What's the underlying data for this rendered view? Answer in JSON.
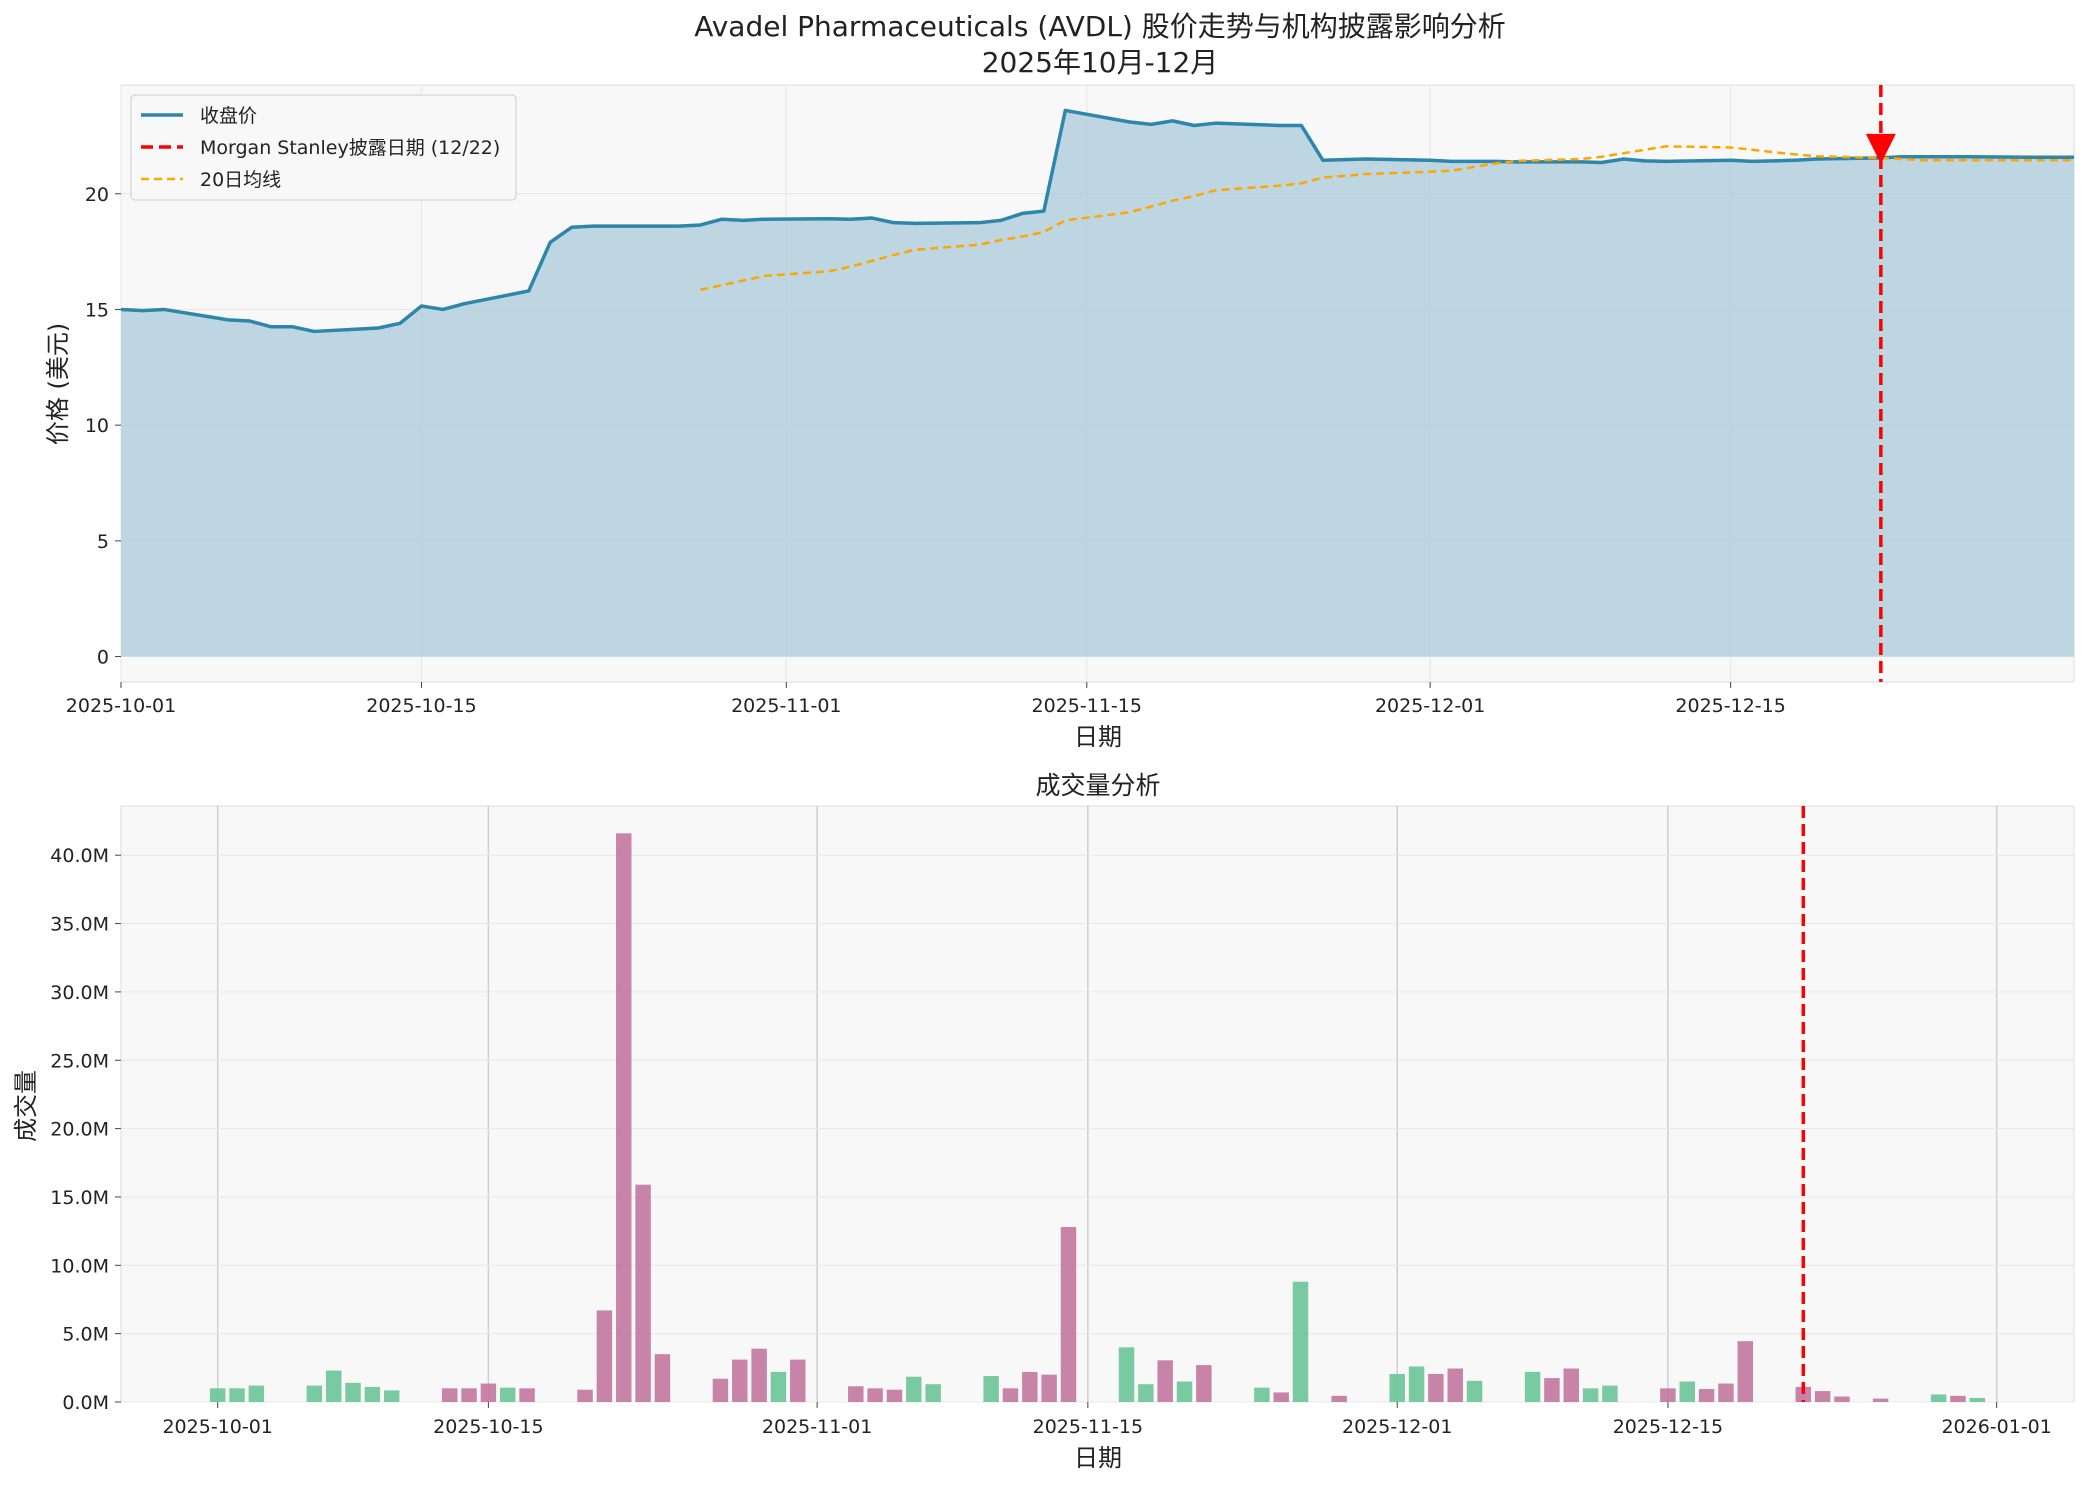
{
  "chart_data": [
    {
      "type": "area",
      "title": "Avadel Pharmaceuticals (AVDL) 股价走势与机构披露影响分析",
      "subtitle": "2025年10月-12月",
      "xlabel": "日期",
      "ylabel": "价格 (美元)",
      "ylim": [
        -1.1,
        24.7
      ],
      "xlim": [
        "2025-10-01",
        "2025-12-31"
      ],
      "x_ticks": [
        "2025-10-01",
        "2025-10-15",
        "2025-11-01",
        "2025-11-15",
        "2025-12-01",
        "2025-12-15"
      ],
      "y_ticks": [
        0,
        5,
        10,
        15,
        20
      ],
      "grid": true,
      "legend_position": "top-left",
      "series": [
        {
          "name": "收盘价",
          "color": "#2e86ab",
          "points": [
            [
              "2025-10-01",
              15.0
            ],
            [
              "2025-10-02",
              14.95
            ],
            [
              "2025-10-03",
              15.0
            ],
            [
              "2025-10-06",
              14.55
            ],
            [
              "2025-10-07",
              14.5
            ],
            [
              "2025-10-08",
              14.25
            ],
            [
              "2025-10-09",
              14.25
            ],
            [
              "2025-10-10",
              14.05
            ],
            [
              "2025-10-13",
              14.2
            ],
            [
              "2025-10-14",
              14.4
            ],
            [
              "2025-10-15",
              15.15
            ],
            [
              "2025-10-16",
              15.0
            ],
            [
              "2025-10-17",
              15.25
            ],
            [
              "2025-10-20",
              15.8
            ],
            [
              "2025-10-21",
              17.9
            ],
            [
              "2025-10-22",
              18.55
            ],
            [
              "2025-10-23",
              18.6
            ],
            [
              "2025-10-24",
              18.6
            ],
            [
              "2025-10-27",
              18.6
            ],
            [
              "2025-10-28",
              18.65
            ],
            [
              "2025-10-29",
              18.9
            ],
            [
              "2025-10-30",
              18.85
            ],
            [
              "2025-10-31",
              18.9
            ],
            [
              "2025-11-03",
              18.92
            ],
            [
              "2025-11-04",
              18.9
            ],
            [
              "2025-11-05",
              18.95
            ],
            [
              "2025-11-06",
              18.75
            ],
            [
              "2025-11-07",
              18.72
            ],
            [
              "2025-11-10",
              18.75
            ],
            [
              "2025-11-11",
              18.85
            ],
            [
              "2025-11-12",
              19.15
            ],
            [
              "2025-11-13",
              19.25
            ],
            [
              "2025-11-14",
              23.6
            ],
            [
              "2025-11-17",
              23.1
            ],
            [
              "2025-11-18",
              23.0
            ],
            [
              "2025-11-19",
              23.15
            ],
            [
              "2025-11-20",
              22.95
            ],
            [
              "2025-11-21",
              23.05
            ],
            [
              "2025-11-24",
              22.95
            ],
            [
              "2025-11-25",
              22.95
            ],
            [
              "2025-11-26",
              21.45
            ],
            [
              "2025-11-28",
              21.5
            ],
            [
              "2025-12-01",
              21.45
            ],
            [
              "2025-12-02",
              21.4
            ],
            [
              "2025-12-03",
              21.4
            ],
            [
              "2025-12-04",
              21.4
            ],
            [
              "2025-12-05",
              21.38
            ],
            [
              "2025-12-08",
              21.38
            ],
            [
              "2025-12-09",
              21.35
            ],
            [
              "2025-12-10",
              21.5
            ],
            [
              "2025-12-11",
              21.42
            ],
            [
              "2025-12-12",
              21.4
            ],
            [
              "2025-12-15",
              21.45
            ],
            [
              "2025-12-16",
              21.4
            ],
            [
              "2025-12-17",
              21.42
            ],
            [
              "2025-12-18",
              21.45
            ],
            [
              "2025-12-19",
              21.5
            ],
            [
              "2025-12-22",
              21.55
            ],
            [
              "2025-12-23",
              21.6
            ],
            [
              "2025-12-24",
              21.6
            ],
            [
              "2025-12-26",
              21.6
            ],
            [
              "2025-12-29",
              21.58
            ],
            [
              "2025-12-30",
              21.58
            ],
            [
              "2025-12-31",
              21.58
            ]
          ]
        },
        {
          "name": "20日均线",
          "color": "#ffa500",
          "style": "dashed",
          "points": [
            [
              "2025-10-28",
              15.85
            ],
            [
              "2025-10-29",
              16.05
            ],
            [
              "2025-10-30",
              16.25
            ],
            [
              "2025-10-31",
              16.45
            ],
            [
              "2025-11-03",
              16.65
            ],
            [
              "2025-11-04",
              16.85
            ],
            [
              "2025-11-05",
              17.1
            ],
            [
              "2025-11-06",
              17.35
            ],
            [
              "2025-11-07",
              17.58
            ],
            [
              "2025-11-10",
              17.8
            ],
            [
              "2025-11-11",
              18.0
            ],
            [
              "2025-11-12",
              18.15
            ],
            [
              "2025-11-13",
              18.35
            ],
            [
              "2025-11-14",
              18.85
            ],
            [
              "2025-11-17",
              19.2
            ],
            [
              "2025-11-18",
              19.45
            ],
            [
              "2025-11-19",
              19.7
            ],
            [
              "2025-11-20",
              19.9
            ],
            [
              "2025-11-21",
              20.15
            ],
            [
              "2025-11-24",
              20.35
            ],
            [
              "2025-11-25",
              20.45
            ],
            [
              "2025-11-26",
              20.7
            ],
            [
              "2025-11-28",
              20.85
            ],
            [
              "2025-12-01",
              20.95
            ],
            [
              "2025-12-02",
              21.0
            ],
            [
              "2025-12-03",
              21.15
            ],
            [
              "2025-12-04",
              21.3
            ],
            [
              "2025-12-05",
              21.42
            ],
            [
              "2025-12-08",
              21.5
            ],
            [
              "2025-12-09",
              21.6
            ],
            [
              "2025-12-10",
              21.75
            ],
            [
              "2025-12-11",
              21.9
            ],
            [
              "2025-12-12",
              22.05
            ],
            [
              "2025-12-15",
              22.0
            ],
            [
              "2025-12-16",
              21.9
            ],
            [
              "2025-12-17",
              21.8
            ],
            [
              "2025-12-18",
              21.7
            ],
            [
              "2025-12-19",
              21.62
            ],
            [
              "2025-12-22",
              21.55
            ],
            [
              "2025-12-23",
              21.5
            ],
            [
              "2025-12-24",
              21.45
            ],
            [
              "2025-12-26",
              21.45
            ],
            [
              "2025-12-29",
              21.45
            ],
            [
              "2025-12-30",
              21.45
            ],
            [
              "2025-12-31",
              21.45
            ]
          ]
        }
      ],
      "vline": {
        "name": "Morgan Stanley披露日期 (12/22)",
        "x": "2025-12-22",
        "color": "#ff0000"
      },
      "marker": {
        "x": "2025-12-22",
        "y": 21.55,
        "shape": "down-triangle",
        "color": "#ff0000"
      }
    },
    {
      "type": "bar",
      "title": "成交量分析",
      "xlabel": "日期",
      "ylabel": "成交量",
      "ylim": [
        0,
        43600000
      ],
      "xlim": [
        "2025-09-26",
        "2026-01-05"
      ],
      "x_ticks": [
        "2025-10-01",
        "2025-10-15",
        "2025-11-01",
        "2025-11-15",
        "2025-12-01",
        "2025-12-15",
        "2026-01-01"
      ],
      "y_ticks": [
        "0.0M",
        "5.0M",
        "10.0M",
        "15.0M",
        "20.0M",
        "25.0M",
        "30.0M",
        "35.0M",
        "40.0M"
      ],
      "up_color": "#6cc497",
      "down_color": "#c2779e",
      "vline": {
        "x": "2025-12-22",
        "color": "#ff0000"
      },
      "bars": [
        [
          "2025-10-01",
          1.0,
          "up"
        ],
        [
          "2025-10-02",
          1.0,
          "up"
        ],
        [
          "2025-10-03",
          1.2,
          "up"
        ],
        [
          "2025-10-06",
          1.2,
          "up"
        ],
        [
          "2025-10-07",
          2.3,
          "up"
        ],
        [
          "2025-10-08",
          1.4,
          "up"
        ],
        [
          "2025-10-09",
          1.1,
          "up"
        ],
        [
          "2025-10-10",
          0.85,
          "up"
        ],
        [
          "2025-10-13",
          1.0,
          "down"
        ],
        [
          "2025-10-14",
          1.0,
          "down"
        ],
        [
          "2025-10-15",
          1.35,
          "down"
        ],
        [
          "2025-10-16",
          1.05,
          "up"
        ],
        [
          "2025-10-17",
          1.0,
          "down"
        ],
        [
          "2025-10-20",
          0.9,
          "down"
        ],
        [
          "2025-10-21",
          6.7,
          "down"
        ],
        [
          "2025-10-22",
          41.6,
          "down"
        ],
        [
          "2025-10-23",
          15.9,
          "down"
        ],
        [
          "2025-10-24",
          3.5,
          "down"
        ],
        [
          "2025-10-27",
          1.7,
          "down"
        ],
        [
          "2025-10-28",
          3.1,
          "down"
        ],
        [
          "2025-10-29",
          3.9,
          "down"
        ],
        [
          "2025-10-30",
          2.2,
          "up"
        ],
        [
          "2025-10-31",
          3.1,
          "down"
        ],
        [
          "2025-11-03",
          1.15,
          "down"
        ],
        [
          "2025-11-04",
          1.0,
          "down"
        ],
        [
          "2025-11-05",
          0.9,
          "down"
        ],
        [
          "2025-11-06",
          1.85,
          "up"
        ],
        [
          "2025-11-07",
          1.3,
          "up"
        ],
        [
          "2025-11-10",
          1.9,
          "up"
        ],
        [
          "2025-11-11",
          1.0,
          "down"
        ],
        [
          "2025-11-12",
          2.2,
          "down"
        ],
        [
          "2025-11-13",
          2.0,
          "down"
        ],
        [
          "2025-11-14",
          12.8,
          "down"
        ],
        [
          "2025-11-17",
          4.0,
          "up"
        ],
        [
          "2025-11-18",
          1.3,
          "up"
        ],
        [
          "2025-11-19",
          3.05,
          "down"
        ],
        [
          "2025-11-20",
          1.5,
          "up"
        ],
        [
          "2025-11-21",
          2.7,
          "down"
        ],
        [
          "2025-11-24",
          1.05,
          "up"
        ],
        [
          "2025-11-25",
          0.7,
          "down"
        ],
        [
          "2025-11-26",
          8.8,
          "up"
        ],
        [
          "2025-11-28",
          0.45,
          "down"
        ],
        [
          "2025-12-01",
          2.05,
          "up"
        ],
        [
          "2025-12-02",
          2.6,
          "up"
        ],
        [
          "2025-12-03",
          2.05,
          "down"
        ],
        [
          "2025-12-04",
          2.45,
          "down"
        ],
        [
          "2025-12-05",
          1.55,
          "up"
        ],
        [
          "2025-12-08",
          2.2,
          "up"
        ],
        [
          "2025-12-09",
          1.75,
          "down"
        ],
        [
          "2025-12-10",
          2.45,
          "down"
        ],
        [
          "2025-12-11",
          1.0,
          "up"
        ],
        [
          "2025-12-12",
          1.2,
          "up"
        ],
        [
          "2025-12-15",
          1.0,
          "down"
        ],
        [
          "2025-12-16",
          1.5,
          "up"
        ],
        [
          "2025-12-17",
          0.95,
          "down"
        ],
        [
          "2025-12-18",
          1.35,
          "down"
        ],
        [
          "2025-12-19",
          4.45,
          "down"
        ],
        [
          "2025-12-22",
          1.1,
          "down"
        ],
        [
          "2025-12-23",
          0.8,
          "down"
        ],
        [
          "2025-12-24",
          0.4,
          "down"
        ],
        [
          "2025-12-26",
          0.25,
          "down"
        ],
        [
          "2025-12-29",
          0.55,
          "up"
        ],
        [
          "2025-12-30",
          0.45,
          "down"
        ],
        [
          "2025-12-31",
          0.3,
          "up"
        ]
      ]
    }
  ]
}
